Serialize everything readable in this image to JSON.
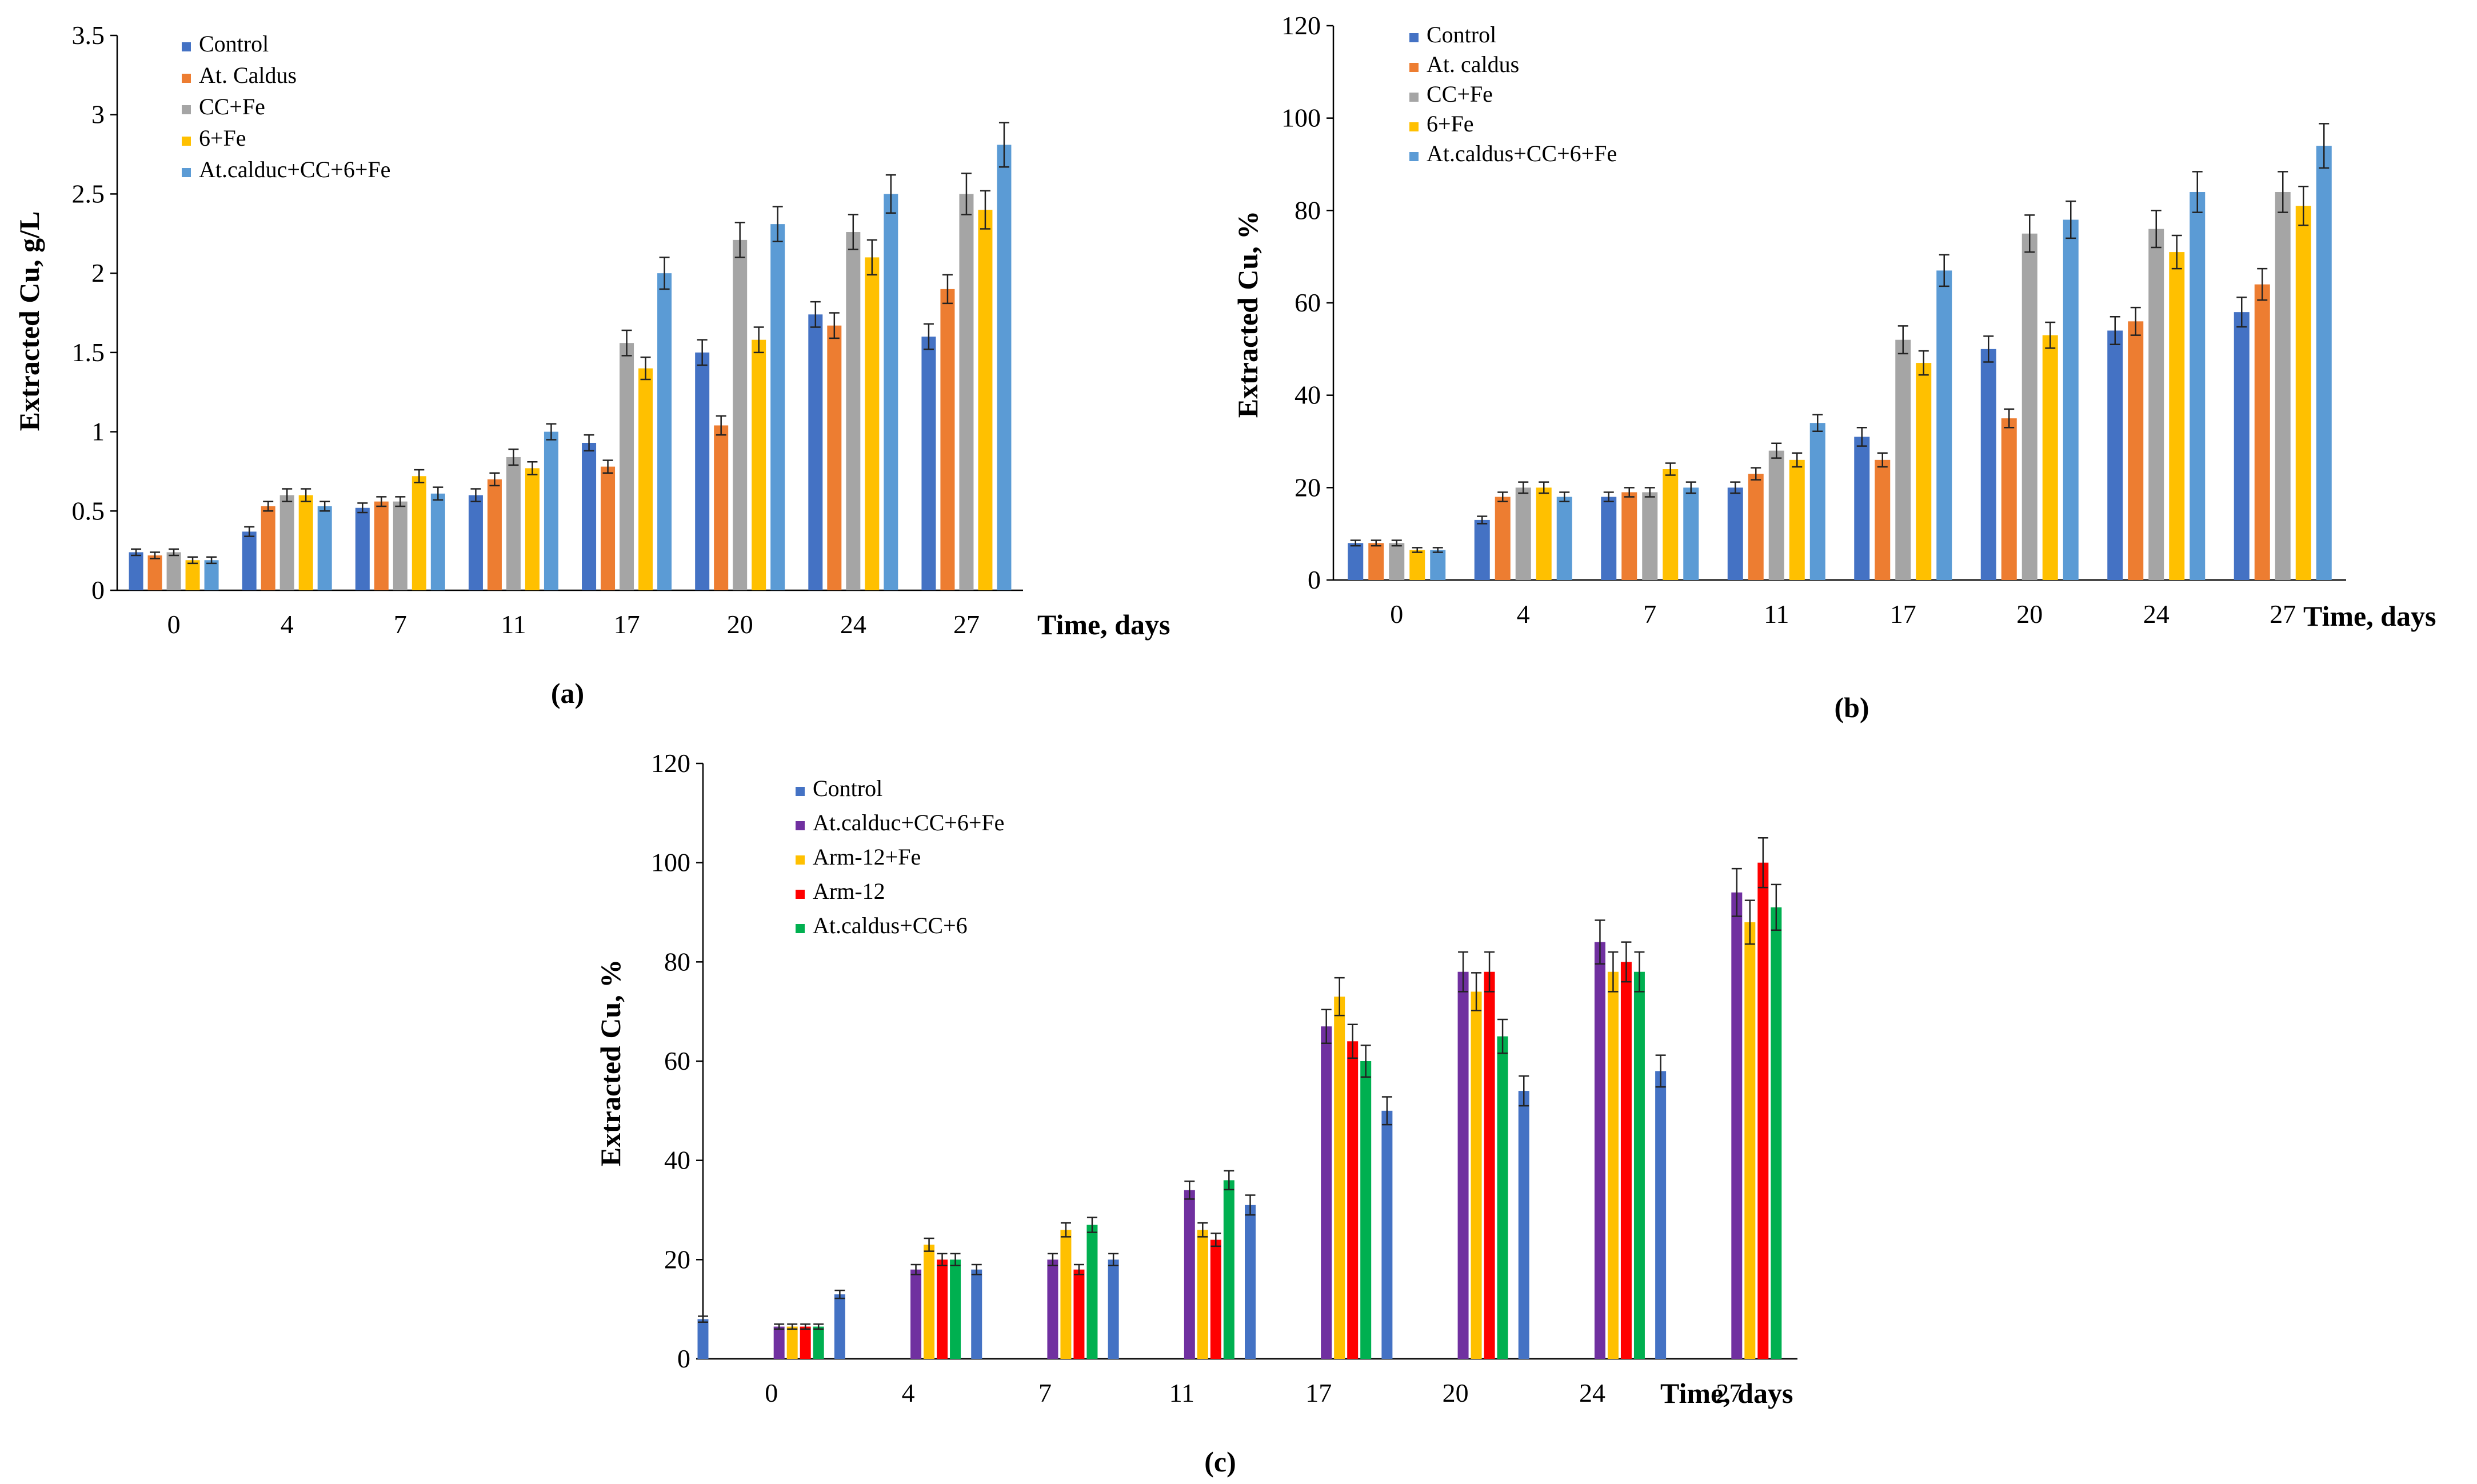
{
  "chart_data": [
    {
      "type": "bar",
      "panel_label": "(a)",
      "ylabel": "Extracted Cu, g/L",
      "xlabel": "Time, days",
      "categories": [
        "0",
        "4",
        "7",
        "11",
        "17",
        "20",
        "24",
        "27"
      ],
      "ylim": [
        0,
        3.5
      ],
      "yticks": [
        "0",
        "0.5",
        "1",
        "1.5",
        "2",
        "2.5",
        "3",
        "3.5"
      ],
      "legend_position": "top-left",
      "series": [
        {
          "name": "Control",
          "color": "#4472C4",
          "values": [
            0.24,
            0.37,
            0.52,
            0.6,
            0.93,
            1.5,
            1.74,
            1.6
          ],
          "errors": [
            0.02,
            0.03,
            0.03,
            0.04,
            0.05,
            0.08,
            0.08,
            0.08
          ]
        },
        {
          "name": "At. Caldus",
          "color": "#ED7D31",
          "values": [
            0.22,
            0.53,
            0.56,
            0.7,
            0.78,
            1.04,
            1.67,
            1.9
          ],
          "errors": [
            0.02,
            0.03,
            0.03,
            0.04,
            0.04,
            0.06,
            0.08,
            0.09
          ]
        },
        {
          "name": "CC+Fe",
          "color": "#A5A5A5",
          "values": [
            0.24,
            0.6,
            0.56,
            0.84,
            1.56,
            2.21,
            2.26,
            2.5
          ],
          "errors": [
            0.02,
            0.04,
            0.03,
            0.05,
            0.08,
            0.11,
            0.11,
            0.13
          ]
        },
        {
          "name": "6+Fe",
          "color": "#FFC000",
          "values": [
            0.19,
            0.6,
            0.72,
            0.77,
            1.4,
            1.58,
            2.1,
            2.4
          ],
          "errors": [
            0.02,
            0.04,
            0.04,
            0.04,
            0.07,
            0.08,
            0.11,
            0.12
          ]
        },
        {
          "name": "At.calduc+CC+6+Fe",
          "color": "#5B9BD5",
          "values": [
            0.19,
            0.53,
            0.61,
            1.0,
            2.0,
            2.31,
            2.5,
            2.81
          ],
          "errors": [
            0.02,
            0.03,
            0.04,
            0.05,
            0.1,
            0.11,
            0.12,
            0.14
          ]
        }
      ]
    },
    {
      "type": "bar",
      "panel_label": "(b)",
      "ylabel": "Extracted Cu, %",
      "xlabel": "Time, days",
      "categories": [
        "0",
        "4",
        "7",
        "11",
        "17",
        "20",
        "24",
        "27"
      ],
      "ylim": [
        0,
        120
      ],
      "yticks": [
        "0",
        "20",
        "40",
        "60",
        "80",
        "100",
        "120"
      ],
      "legend_position": "top-left",
      "series": [
        {
          "name": "Control",
          "color": "#4472C4",
          "values": [
            8,
            13,
            18,
            20,
            31,
            50,
            54,
            58
          ],
          "errors": [
            0.6,
            0.8,
            1.0,
            1.2,
            2.0,
            2.8,
            3.0,
            3.2
          ]
        },
        {
          "name": "At. caldus",
          "color": "#ED7D31",
          "values": [
            8,
            18,
            19,
            23,
            26,
            35,
            56,
            64
          ],
          "errors": [
            0.6,
            1.0,
            1.0,
            1.3,
            1.5,
            2.0,
            3.0,
            3.4
          ]
        },
        {
          "name": "CC+Fe",
          "color": "#A5A5A5",
          "values": [
            8,
            20,
            19,
            28,
            52,
            75,
            76,
            84
          ],
          "errors": [
            0.6,
            1.2,
            1.0,
            1.6,
            3.0,
            4.0,
            4.0,
            4.4
          ]
        },
        {
          "name": "6+Fe",
          "color": "#FFC000",
          "values": [
            6.5,
            20,
            24,
            26,
            47,
            53,
            71,
            81
          ],
          "errors": [
            0.5,
            1.2,
            1.3,
            1.5,
            2.6,
            2.8,
            3.6,
            4.2
          ]
        },
        {
          "name": "At.caldus+CC+6+Fe",
          "color": "#5B9BD5",
          "values": [
            6.5,
            18,
            20,
            34,
            67,
            78,
            84,
            94
          ],
          "errors": [
            0.5,
            1.0,
            1.2,
            1.8,
            3.4,
            4.0,
            4.4,
            4.8
          ]
        }
      ]
    },
    {
      "type": "bar",
      "panel_label": "(c)",
      "ylabel": "Extracted Cu, %",
      "xlabel": "Time, days",
      "categories": [
        "0",
        "4",
        "7",
        "11",
        "17",
        "20",
        "24",
        "27"
      ],
      "ylim": [
        0,
        120
      ],
      "yticks": [
        "0",
        "20",
        "40",
        "60",
        "80",
        "100",
        "120"
      ],
      "legend_position": "top-left",
      "control_series": {
        "name": "Control",
        "color": "#4472C4",
        "x_between": [
          -0.5,
          0.5,
          1.5,
          2.5,
          3.5,
          4.5,
          5.5,
          6.5
        ],
        "values": [
          8,
          13,
          18,
          20,
          31,
          50,
          54,
          58
        ],
        "errors": [
          0.6,
          0.8,
          1.0,
          1.2,
          2.0,
          2.8,
          3.0,
          3.2
        ]
      },
      "series": [
        {
          "name": "At.calduc+CC+6+Fe",
          "color": "#7030A0",
          "values": [
            6.5,
            18,
            20,
            34,
            67,
            78,
            84,
            94
          ],
          "errors": [
            0.5,
            1.0,
            1.2,
            1.8,
            3.4,
            4.0,
            4.4,
            4.8
          ]
        },
        {
          "name": "Arm-12+Fe",
          "color": "#FFC000",
          "values": [
            6.5,
            23,
            26,
            26,
            73,
            74,
            78,
            88
          ],
          "errors": [
            0.5,
            1.3,
            1.4,
            1.4,
            3.8,
            3.8,
            4.0,
            4.4
          ]
        },
        {
          "name": "Arm-12",
          "color": "#FF0000",
          "values": [
            6.5,
            20,
            18,
            24,
            64,
            78,
            80,
            100
          ],
          "errors": [
            0.5,
            1.2,
            1.0,
            1.3,
            3.4,
            4.0,
            4.0,
            5.0
          ]
        },
        {
          "name": "At.caldus+CC+6",
          "color": "#00B050",
          "values": [
            6.5,
            20,
            27,
            36,
            60,
            65,
            78,
            91
          ],
          "errors": [
            0.5,
            1.2,
            1.5,
            1.9,
            3.2,
            3.4,
            4.0,
            4.6
          ]
        }
      ]
    }
  ]
}
